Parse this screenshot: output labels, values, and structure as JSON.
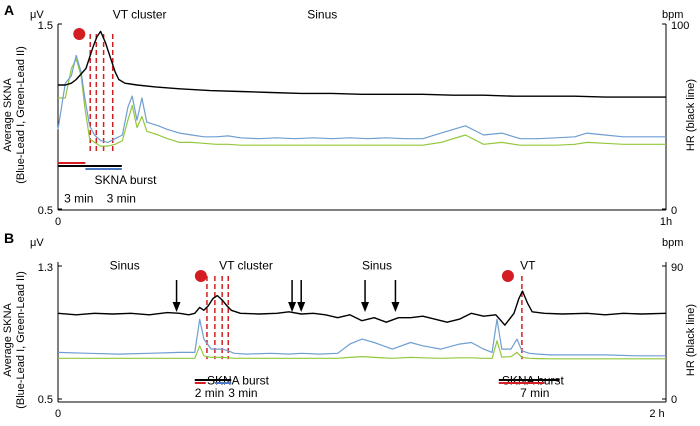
{
  "colors": {
    "hr": "#000000",
    "lead1": "#6f9ed0",
    "lead2": "#94c83c",
    "marker": "#d31d22",
    "vline": "#d31d22",
    "bar_red": "#d31d22",
    "bar_blue": "#4a78c2",
    "bar_black": "#000000",
    "axis": "#000000"
  },
  "chart_data": [
    {
      "panel": "A",
      "type": "line",
      "yunit_left": "μV",
      "yunit_right": "bpm",
      "ylabel_left_line1": "Average SKNA",
      "ylabel_left_line2": "(Blue-Lead I, Green-Lead II)",
      "ylabel_right": "HR (black line)",
      "xlim": [
        0,
        1
      ],
      "ylim_left": [
        0.5,
        1.5
      ],
      "ylim_right": [
        0,
        100
      ],
      "x_ticks": [
        "0",
        "1h"
      ],
      "y_ticks_left": [
        "1.5",
        "0.5"
      ],
      "y_ticks_right": [
        "100",
        "0"
      ],
      "annotations": [
        {
          "text": "VT cluster",
          "x": 0.09,
          "y_skna": 1.53
        },
        {
          "text": "Sinus",
          "x": 0.41,
          "y_skna": 1.53
        },
        {
          "text": "SKNA burst",
          "x": 0.06,
          "y_skna": 0.635
        },
        {
          "text": "3 min",
          "x": 0.01,
          "y_skna": 0.535
        },
        {
          "text": "3 min",
          "x": 0.08,
          "y_skna": 0.535
        }
      ],
      "events": {
        "dots": [
          0.035
        ],
        "dashed_lines": [
          0.053,
          0.063,
          0.075,
          0.09
        ]
      },
      "duration_bars": [
        {
          "color": "red",
          "x0": 0.0,
          "x1": 0.045
        },
        {
          "color": "black",
          "x0": 0.0,
          "x1": 0.105
        },
        {
          "color": "blue",
          "x0": 0.045,
          "x1": 0.105
        }
      ],
      "series": [
        {
          "name": "Lead I",
          "axis": "left",
          "x": [
            0,
            0.012,
            0.022,
            0.03,
            0.038,
            0.044,
            0.052,
            0.06,
            0.07,
            0.082,
            0.094,
            0.106,
            0.115,
            0.122,
            0.13,
            0.138,
            0.146,
            0.155,
            0.165,
            0.18,
            0.2,
            0.22,
            0.24,
            0.26,
            0.28,
            0.3,
            0.33,
            0.36,
            0.39,
            0.42,
            0.45,
            0.48,
            0.51,
            0.54,
            0.57,
            0.6,
            0.63,
            0.67,
            0.7,
            0.73,
            0.76,
            0.79,
            0.82,
            0.85,
            0.87,
            0.9,
            0.93,
            0.96,
            1.0
          ],
          "y": [
            0.93,
            1.18,
            1.22,
            1.33,
            1.24,
            1.1,
            0.95,
            0.9,
            0.87,
            0.86,
            0.88,
            0.9,
            1.05,
            1.11,
            0.98,
            1.1,
            0.97,
            0.96,
            0.95,
            0.93,
            0.91,
            0.9,
            0.89,
            0.89,
            0.895,
            0.885,
            0.88,
            0.885,
            0.88,
            0.885,
            0.88,
            0.885,
            0.88,
            0.885,
            0.88,
            0.88,
            0.91,
            0.95,
            0.9,
            0.91,
            0.88,
            0.88,
            0.885,
            0.89,
            0.91,
            0.9,
            0.89,
            0.89,
            0.89
          ]
        },
        {
          "name": "Lead II",
          "axis": "left",
          "x": [
            0,
            0.012,
            0.022,
            0.03,
            0.038,
            0.044,
            0.052,
            0.06,
            0.07,
            0.082,
            0.094,
            0.106,
            0.115,
            0.122,
            0.13,
            0.138,
            0.146,
            0.155,
            0.165,
            0.18,
            0.2,
            0.22,
            0.24,
            0.26,
            0.28,
            0.3,
            0.33,
            0.36,
            0.39,
            0.42,
            0.45,
            0.48,
            0.51,
            0.54,
            0.57,
            0.6,
            0.63,
            0.67,
            0.7,
            0.73,
            0.76,
            0.79,
            0.82,
            0.85,
            0.87,
            0.9,
            0.93,
            0.96,
            1.0
          ],
          "y": [
            1.1,
            1.1,
            1.26,
            1.31,
            1.22,
            1.05,
            0.88,
            0.86,
            0.84,
            0.84,
            0.85,
            0.87,
            0.98,
            1.06,
            0.94,
            1.0,
            0.92,
            0.91,
            0.9,
            0.88,
            0.86,
            0.86,
            0.855,
            0.85,
            0.85,
            0.845,
            0.845,
            0.845,
            0.845,
            0.845,
            0.845,
            0.845,
            0.845,
            0.845,
            0.845,
            0.845,
            0.86,
            0.9,
            0.85,
            0.86,
            0.845,
            0.845,
            0.845,
            0.85,
            0.86,
            0.855,
            0.85,
            0.85,
            0.85
          ]
        },
        {
          "name": "HR",
          "axis": "right",
          "x": [
            0,
            0.012,
            0.022,
            0.03,
            0.038,
            0.046,
            0.052,
            0.058,
            0.064,
            0.07,
            0.078,
            0.086,
            0.094,
            0.1,
            0.11,
            0.13,
            0.16,
            0.2,
            0.25,
            0.3,
            0.35,
            0.4,
            0.45,
            0.5,
            0.55,
            0.6,
            0.65,
            0.7,
            0.75,
            0.8,
            0.85,
            0.9,
            0.95,
            1.0
          ],
          "y": [
            67,
            67,
            68,
            70,
            73,
            76,
            82,
            88,
            93,
            96,
            90,
            82,
            74,
            70,
            68,
            67,
            66,
            65,
            64,
            63.5,
            63,
            62.5,
            62.5,
            62,
            62,
            62,
            61.5,
            61.5,
            61,
            61,
            61,
            60.5,
            60.5,
            60.5
          ]
        }
      ]
    },
    {
      "panel": "B",
      "type": "line",
      "yunit_left": "μV",
      "yunit_right": "bpm",
      "ylabel_left_line1": "Average SKNA",
      "ylabel_left_line2": "(Blue-Lead I, Green-Lead II)",
      "ylabel_right": "HR (black line)",
      "xlim": [
        0,
        1
      ],
      "ylim_left": [
        0.5,
        1.3
      ],
      "ylim_right": [
        0,
        90
      ],
      "x_ticks": [
        "0",
        "2 h"
      ],
      "y_ticks_left": [
        "1.3",
        "0.5"
      ],
      "y_ticks_right": [
        "90",
        "0"
      ],
      "annotations": [
        {
          "text": "Sinus",
          "x": 0.085,
          "y_skna": 1.28
        },
        {
          "text": "VT cluster",
          "x": 0.265,
          "y_skna": 1.28
        },
        {
          "text": "Sinus",
          "x": 0.5,
          "y_skna": 1.28
        },
        {
          "text": "VT",
          "x": 0.76,
          "y_skna": 1.28
        },
        {
          "text": "SKNA burst",
          "x": 0.245,
          "y_skna": 0.588
        },
        {
          "text": "2 min",
          "x": 0.225,
          "y_skna": 0.512
        },
        {
          "text": "3 min",
          "x": 0.28,
          "y_skna": 0.512
        },
        {
          "text": "SKNA burst",
          "x": 0.73,
          "y_skna": 0.588
        },
        {
          "text": "7 min",
          "x": 0.76,
          "y_skna": 0.512
        }
      ],
      "events": {
        "dots": [
          0.235,
          0.74
        ],
        "dashed_lines": [
          0.245,
          0.258,
          0.27,
          0.28,
          0.763
        ],
        "arrows": [
          0.195,
          0.385,
          0.4,
          0.505,
          0.555
        ]
      },
      "duration_bars": [
        {
          "color": "red",
          "x0": 0.225,
          "x1": 0.243
        },
        {
          "color": "blue",
          "x0": 0.258,
          "x1": 0.285
        },
        {
          "color": "black",
          "x0": 0.225,
          "x1": 0.285
        },
        {
          "color": "red",
          "x0": 0.725,
          "x1": 0.8
        },
        {
          "color": "black",
          "x0": 0.725,
          "x1": 0.825
        }
      ],
      "series": [
        {
          "name": "Lead I",
          "axis": "left",
          "x": [
            0,
            0.05,
            0.1,
            0.15,
            0.2,
            0.225,
            0.233,
            0.24,
            0.252,
            0.262,
            0.27,
            0.28,
            0.29,
            0.31,
            0.35,
            0.38,
            0.4,
            0.43,
            0.46,
            0.48,
            0.5,
            0.52,
            0.55,
            0.58,
            0.6,
            0.63,
            0.66,
            0.68,
            0.7,
            0.714,
            0.722,
            0.73,
            0.745,
            0.755,
            0.763,
            0.775,
            0.79,
            0.81,
            0.85,
            0.9,
            0.95,
            1.0
          ],
          "y": [
            0.78,
            0.775,
            0.77,
            0.775,
            0.78,
            0.78,
            0.98,
            0.86,
            0.8,
            0.8,
            0.8,
            0.79,
            0.775,
            0.77,
            0.775,
            0.77,
            0.775,
            0.77,
            0.775,
            0.83,
            0.86,
            0.84,
            0.8,
            0.84,
            0.82,
            0.8,
            0.83,
            0.84,
            0.8,
            0.78,
            0.98,
            0.8,
            0.8,
            0.86,
            0.79,
            0.775,
            0.77,
            0.765,
            0.765,
            0.765,
            0.76,
            0.76
          ]
        },
        {
          "name": "Lead II",
          "axis": "left",
          "x": [
            0,
            0.05,
            0.1,
            0.15,
            0.2,
            0.225,
            0.233,
            0.24,
            0.252,
            0.262,
            0.27,
            0.28,
            0.29,
            0.31,
            0.35,
            0.38,
            0.4,
            0.43,
            0.46,
            0.48,
            0.5,
            0.52,
            0.55,
            0.58,
            0.6,
            0.63,
            0.66,
            0.68,
            0.7,
            0.714,
            0.722,
            0.73,
            0.745,
            0.755,
            0.763,
            0.775,
            0.79,
            0.81,
            0.85,
            0.9,
            0.95,
            1.0
          ],
          "y": [
            0.745,
            0.745,
            0.745,
            0.745,
            0.745,
            0.745,
            0.82,
            0.76,
            0.75,
            0.75,
            0.75,
            0.748,
            0.745,
            0.745,
            0.745,
            0.745,
            0.745,
            0.745,
            0.745,
            0.75,
            0.755,
            0.75,
            0.745,
            0.75,
            0.748,
            0.745,
            0.748,
            0.748,
            0.745,
            0.745,
            0.85,
            0.752,
            0.755,
            0.78,
            0.75,
            0.745,
            0.743,
            0.742,
            0.742,
            0.742,
            0.742,
            0.742
          ]
        },
        {
          "name": "HR",
          "axis": "right",
          "x": [
            0,
            0.03,
            0.06,
            0.09,
            0.12,
            0.15,
            0.18,
            0.2,
            0.215,
            0.225,
            0.233,
            0.24,
            0.247,
            0.255,
            0.262,
            0.27,
            0.278,
            0.285,
            0.3,
            0.33,
            0.36,
            0.38,
            0.4,
            0.42,
            0.44,
            0.46,
            0.48,
            0.5,
            0.52,
            0.54,
            0.56,
            0.58,
            0.6,
            0.62,
            0.64,
            0.66,
            0.68,
            0.7,
            0.72,
            0.735,
            0.75,
            0.758,
            0.764,
            0.772,
            0.78,
            0.8,
            0.83,
            0.87,
            0.9,
            0.93,
            0.96,
            1.0
          ],
          "y": [
            58,
            57,
            58,
            57.5,
            58,
            57,
            58.5,
            58,
            57,
            58,
            62,
            60,
            63,
            68,
            70,
            67,
            63,
            60,
            58,
            57.5,
            58,
            59,
            57.5,
            58,
            57,
            55,
            57,
            53,
            55,
            52,
            55,
            55,
            56,
            54,
            52,
            54,
            58,
            56,
            57,
            50,
            58,
            68,
            73,
            65,
            59,
            58,
            57.5,
            58,
            57,
            58,
            57.5,
            58
          ]
        }
      ]
    }
  ]
}
